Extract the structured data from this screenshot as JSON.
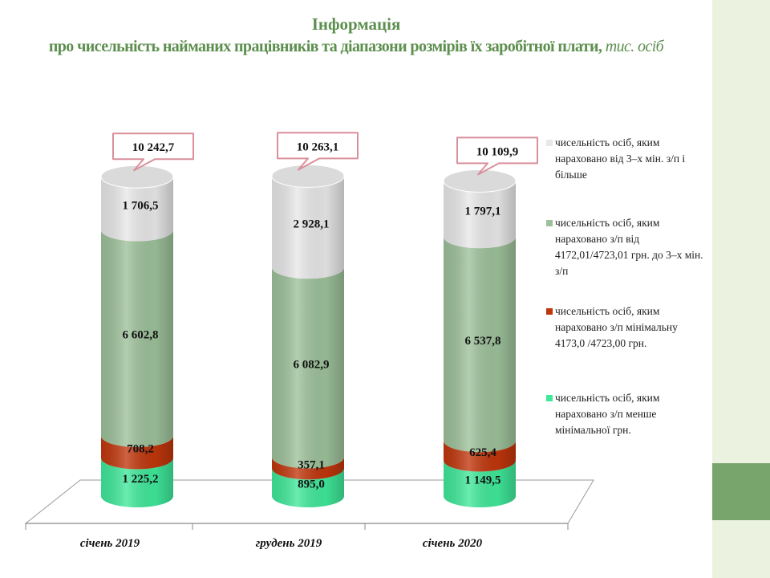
{
  "title": {
    "line1": "Інформація",
    "line2_main": "про чисельність найманих працівників та діапазони розмірів їх заробітної плати,",
    "line2_unit": " тис. осіб"
  },
  "colors": {
    "min_or_less": "#3fe89a",
    "min": "#c0360c",
    "mid": "#9dc19a",
    "high": "#e8e8e8",
    "callout_border": "#d9909c",
    "title": "#5c8f4e",
    "panel": "#ebf2df",
    "panel_accent": "#78a56c"
  },
  "legend": [
    {
      "key": "high",
      "color": "#e8e8e8",
      "text": "чисельність осіб, яким нараховано від 3–х мін. з/п і більше"
    },
    {
      "key": "mid",
      "color": "#9dc19a",
      "text": "чисельність осіб, яким нараховано з/п від 4172,01/4723,01 грн. до 3–х мін. з/п"
    },
    {
      "key": "min",
      "color": "#c0360c",
      "text": "чисельність осіб, яким нараховано з/п мінімальну 4173,0 /4723,00 грн."
    },
    {
      "key": "min_or_less",
      "color": "#3fe89a",
      "text": "чисельність осіб, яким нараховано з/п менше мінімальної грн."
    }
  ],
  "chart_data": {
    "type": "bar",
    "stacked": true,
    "style": "3d-cylinder",
    "categories": [
      "січень 2019",
      "грудень 2019",
      "січень 2020"
    ],
    "series": [
      {
        "name": "чисельність осіб, яким нараховано з/п менше мінімальної грн.",
        "key": "min_or_less",
        "values": [
          1225.2,
          895.0,
          1149.5
        ],
        "labels": [
          "1 225,2",
          "895,0",
          "1 149,5"
        ]
      },
      {
        "name": "чисельність осіб, яким нараховано з/п мінімальну 4173,0 /4723,00 грн.",
        "key": "min",
        "values": [
          708.2,
          357.1,
          625.4
        ],
        "labels": [
          "708,2",
          "357,1",
          "625,4"
        ]
      },
      {
        "name": "чисельність осіб, яким нараховано з/п від 4172,01/4723,01 грн. до 3–х мін. з/п",
        "key": "mid",
        "values": [
          6602.8,
          6082.9,
          6537.8
        ],
        "labels": [
          "6 602,8",
          "6 082,9",
          "6 537,8"
        ]
      },
      {
        "name": "чисельність осіб, яким нараховано від 3–х мін. з/п і більше",
        "key": "high",
        "values": [
          1706.5,
          2928.1,
          1797.1
        ],
        "labels": [
          "1 706,5",
          "2 928,1",
          "1 797,1"
        ]
      }
    ],
    "totals": [
      10242.7,
      10263.1,
      10109.9
    ],
    "total_labels": [
      "10 242,7",
      "10 263,1",
      "10 109,9"
    ],
    "legend_position": "right",
    "grid": false,
    "ylim": [
      0,
      10300
    ]
  }
}
